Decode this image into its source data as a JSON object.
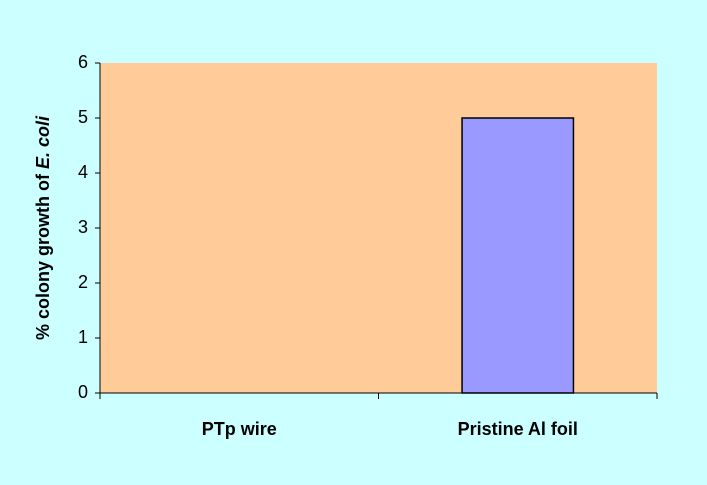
{
  "chart_data": {
    "type": "bar",
    "ylabel": [
      "% colony growth of",
      "E. coli"
    ],
    "categories": [
      "PTp wire",
      "Pristine Al foil"
    ],
    "values": [
      0,
      5
    ],
    "color": "#9999ff",
    "plot_background": "#ffcc99",
    "ylim": [
      0,
      6
    ],
    "yticks": [
      0,
      1,
      2,
      3,
      4,
      5,
      6
    ]
  }
}
